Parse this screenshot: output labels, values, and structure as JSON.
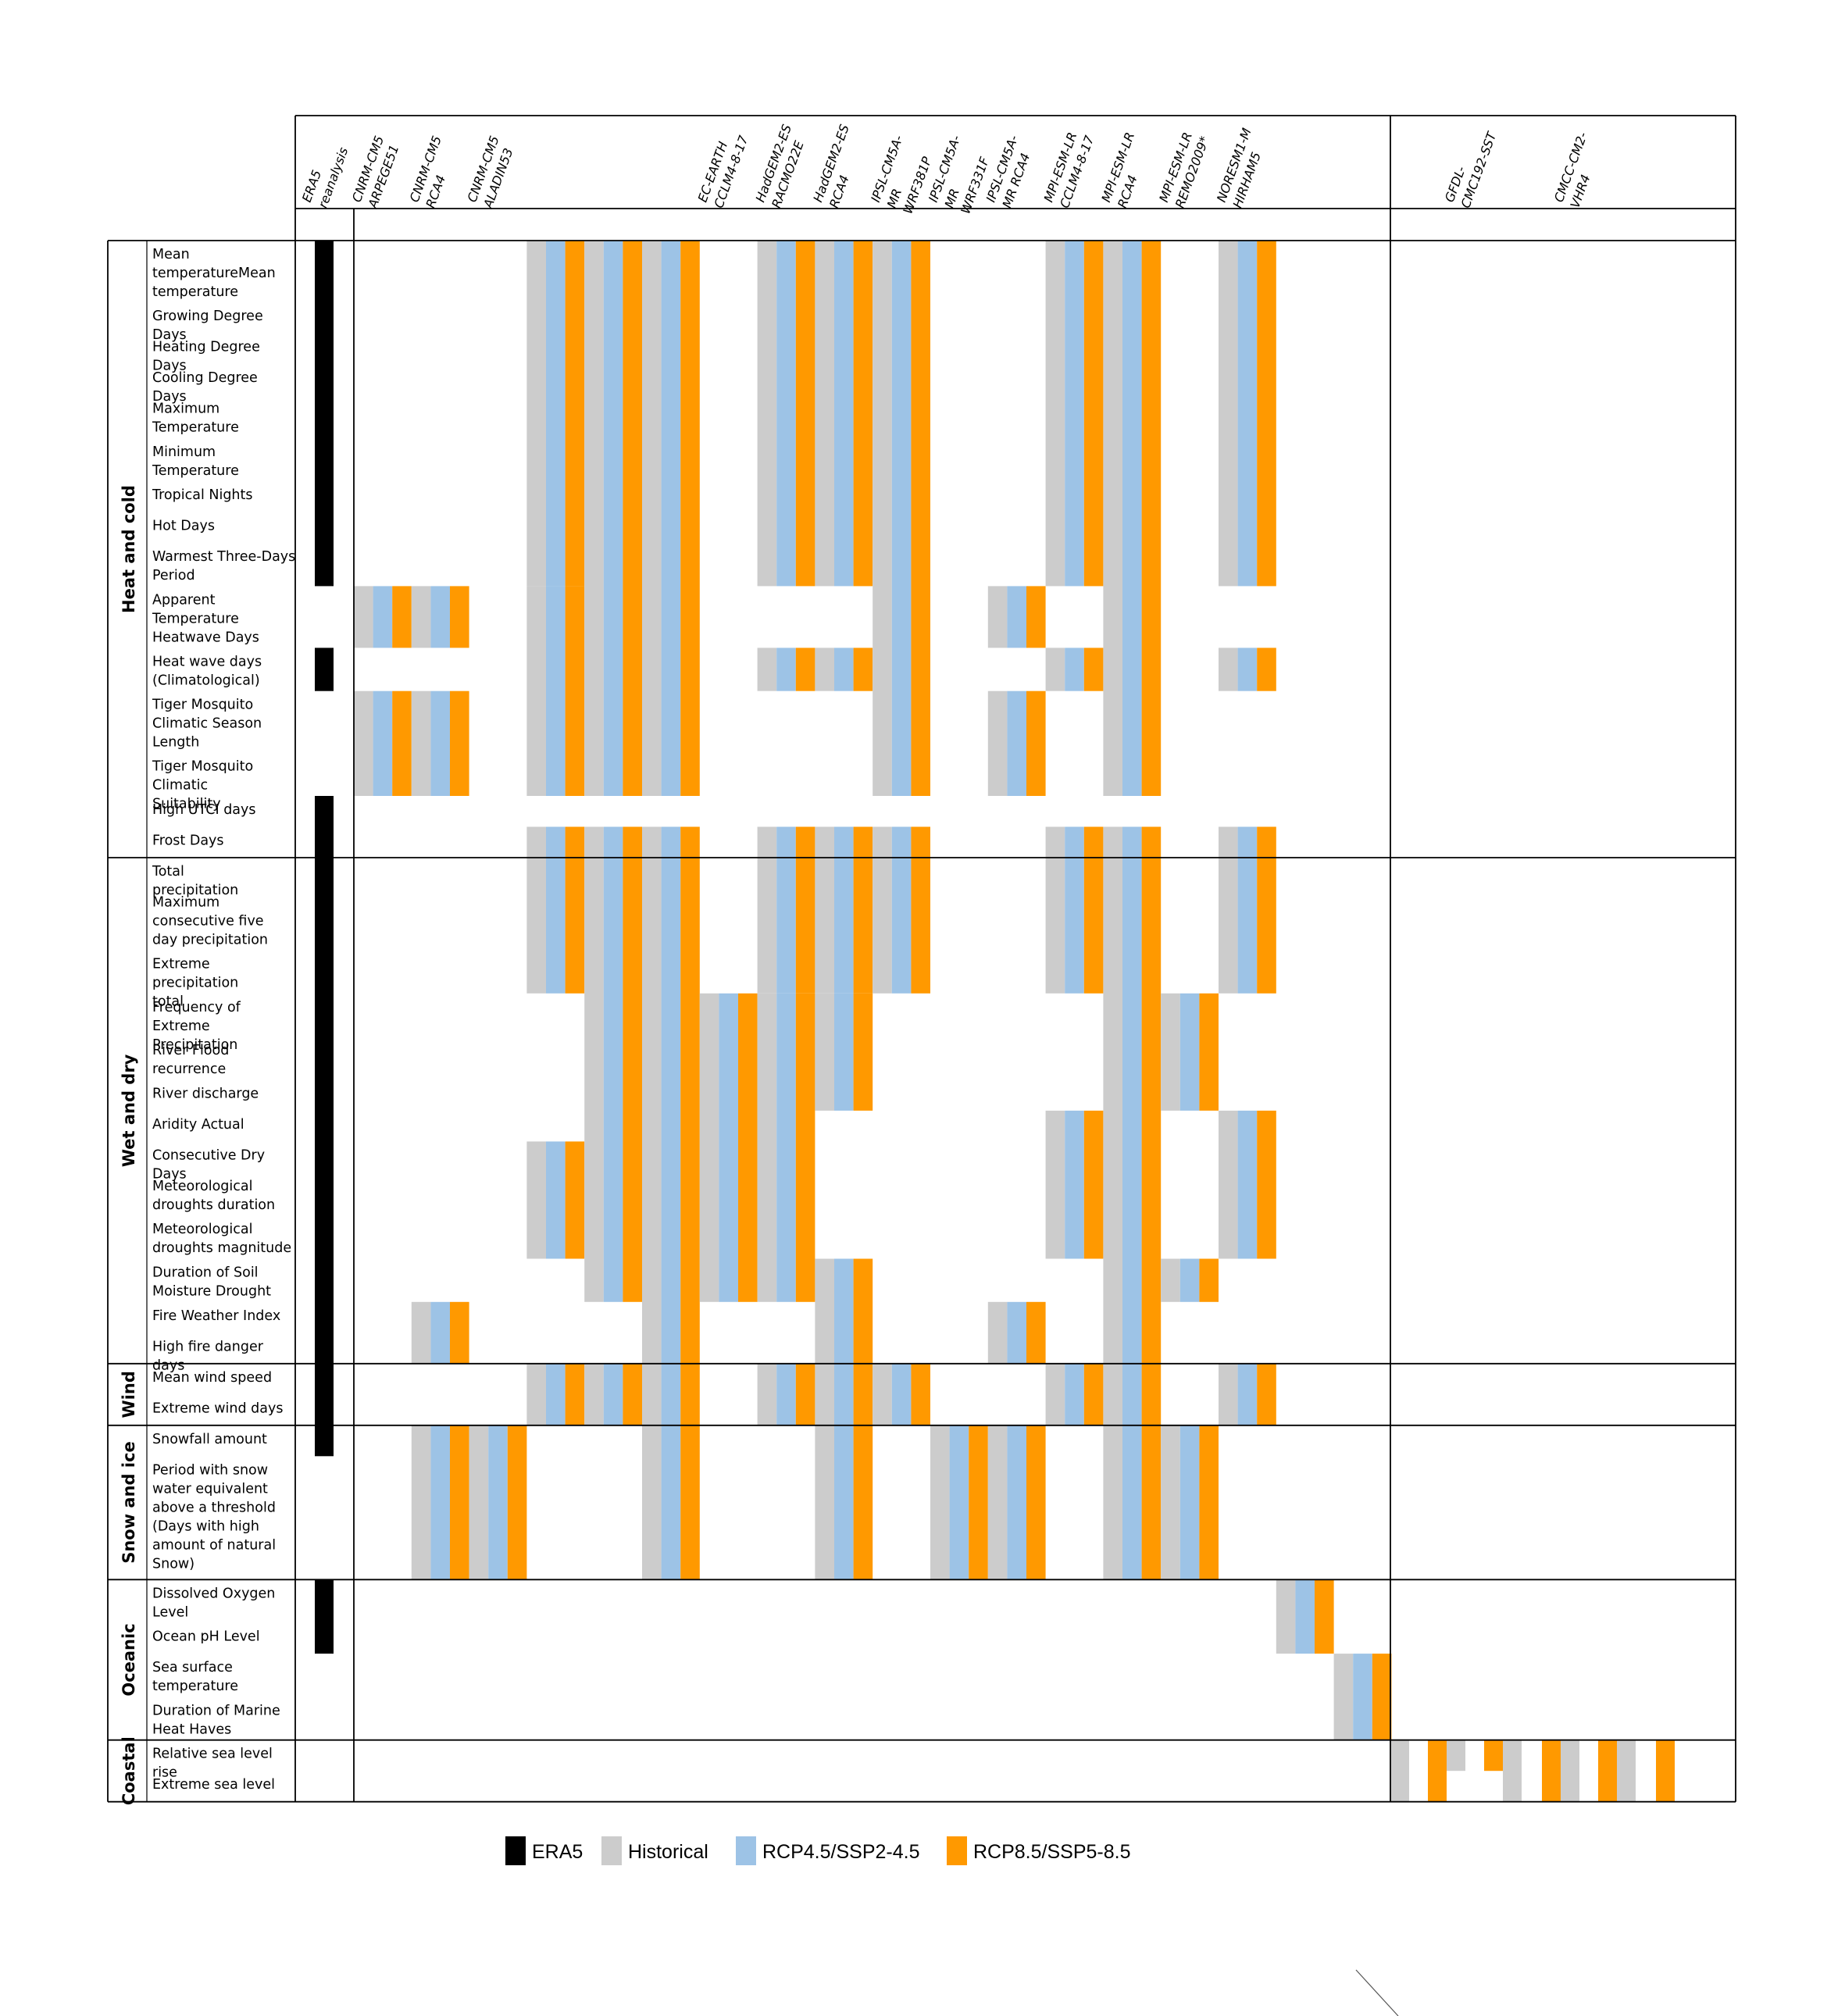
{
  "columns": [
    {
      "id": "era5",
      "label": [
        "ERA5",
        "reanalysis"
      ]
    },
    {
      "id": "c1",
      "label": [
        "CNRM-CM5",
        "ARPEGE51"
      ]
    },
    {
      "id": "c2",
      "label": [
        "CNRM-CM5",
        "RCA4"
      ]
    },
    {
      "id": "c3",
      "label": [
        "CNRM-CM5",
        "ALADIN53"
      ]
    },
    {
      "id": "c4",
      "label": [
        "",
        ""
      ]
    },
    {
      "id": "c5",
      "label": [
        "",
        ""
      ]
    },
    {
      "id": "c6",
      "label": [
        "",
        ""
      ]
    },
    {
      "id": "c7",
      "label": [
        "EC-EARTH",
        "CCLM4-8-17"
      ]
    },
    {
      "id": "c8",
      "label": [
        "HadGEM2-ES",
        "RACMO22E"
      ]
    },
    {
      "id": "c9",
      "label": [
        "HadGEM2-ES",
        "RCA4"
      ]
    },
    {
      "id": "c10",
      "label": [
        "IPSL-CM5A-",
        "MR",
        "WRF381P"
      ]
    },
    {
      "id": "c11",
      "label": [
        "IPSL-CM5A-",
        "MR",
        "WRF331F"
      ]
    },
    {
      "id": "c12",
      "label": [
        "IPSL-CM5A-",
        "MR RCA4"
      ]
    },
    {
      "id": "c13",
      "label": [
        "MPI-ESM-LR",
        "CCLM4-8-17"
      ]
    },
    {
      "id": "c14",
      "label": [
        "MPI-ESM-LR",
        "RCA4"
      ]
    },
    {
      "id": "c15",
      "label": [
        "MPI-ESM-LR",
        "REMO2009*"
      ]
    },
    {
      "id": "c16",
      "label": [
        "NORESM1-M",
        "HIRHAM5"
      ]
    },
    {
      "id": "c17",
      "label": [
        "",
        ""
      ]
    },
    {
      "id": "c18",
      "label": [
        "GFDL-",
        "CMC192-SST"
      ]
    },
    {
      "id": "c19",
      "label": [
        "CMCC-CM2-",
        "VHR4"
      ]
    }
  ],
  "groups": [
    {
      "name": "Heat and cold",
      "indicators": [
        "Mean temperatureMean temperature",
        "Growing Degree Days",
        "Heating Degree Days",
        "Cooling Degree Days",
        "Maximum Temperature",
        "Minimum Temperature",
        "Tropical Nights",
        "Hot Days",
        "Warmest Three-Days Period",
        "Apparent Temperature Heatwave Days",
        "Heat wave days (Climatological)",
        "Tiger Mosquito Climatic Season Length",
        "Tiger Mosquito Climatic Suitability",
        "High UTCI days",
        "Frost Days"
      ]
    },
    {
      "name": "Wet and dry",
      "indicators": [
        "Total precipitation",
        "Maximum consecutive five day precipitation",
        "Extreme precipitation total",
        "Frequency of Extreme Precipitation",
        "River Flood recurrence",
        "River discharge",
        "Aridity Actual",
        "Consecutive Dry Days",
        "Meteorological droughts duration",
        "Meteorological droughts magnitude",
        "Duration of Soil Moisture Drought",
        "Fire Weather Index",
        "High fire danger days"
      ]
    },
    {
      "name": "Wind",
      "indicators": [
        "Mean wind speed",
        "Extreme wind days"
      ]
    },
    {
      "name": "Snow and ice",
      "indicators": [
        "Snowfall amount",
        "Period with snow water equivalent above a threshold (Days with high amount of natural Snow)"
      ]
    },
    {
      "name": "Oceanic",
      "indicators": [
        "Dissolved Oxygen Level",
        "Ocean pH Level",
        "Sea surface temperature",
        "Duration of Marine Heat Haves"
      ]
    },
    {
      "name": "Coastal",
      "indicators": [
        "Relative sea level rise",
        "Extreme sea level"
      ]
    }
  ],
  "legend": [
    {
      "label": "ERA5",
      "color": "#000000"
    },
    {
      "label": "Historical",
      "color": "#cccccc"
    },
    {
      "label": "RCP4.5/SSP2-4.5",
      "color": "#9dc3e6"
    },
    {
      "label": "RCP8.5/SSP5-8.5",
      "color": "#ff9900"
    }
  ],
  "availability": {
    "era5": [
      "1-9",
      "11",
      "14-31",
      "33-34"
    ],
    "c1": [
      "10",
      "12-13"
    ],
    "c2": [
      "10",
      "12-13",
      "27-28",
      "31-32"
    ],
    "c3": [
      "31-32"
    ],
    "c4": [
      "1-9",
      "10-13",
      "15-18",
      "23-25",
      "29-30"
    ],
    "c5": [
      "1-13",
      "15-26",
      "29-30"
    ],
    "c6": [
      "1-13",
      "15-30",
      "31-32"
    ],
    "c7": [
      "19-26"
    ],
    "c8": [
      "1-9",
      "11",
      "15-18",
      "19-26",
      "29-30"
    ],
    "c9": [
      "1-9",
      "11",
      "15-18",
      "19-21",
      "26-30",
      "31-32"
    ],
    "c10": [
      "1-13",
      "15-18",
      "29-30"
    ],
    "c11": [
      "31-32"
    ],
    "c12": [
      "10",
      "12-13",
      "27-28",
      "31-32"
    ],
    "c13": [
      "1-9",
      "11",
      "15-18",
      "22-25",
      "29-30"
    ],
    "c14": [
      "1-13",
      "15-30",
      "31-32"
    ],
    "c15": [
      "19-21",
      "26",
      "31-32"
    ],
    "c16": [
      "1-9",
      "11",
      "15-18",
      "22-25",
      "29-30"
    ],
    "c17": [
      "33-34"
    ],
    "c18": [
      "35-36"
    ]
  }
}
